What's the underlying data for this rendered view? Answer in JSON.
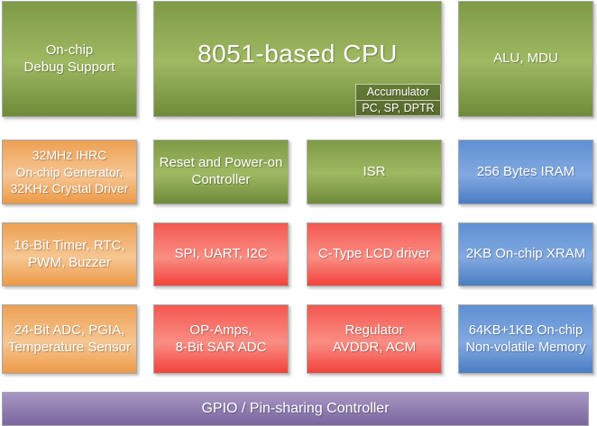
{
  "colors": {
    "green_top": "#7f9a46",
    "green_mid": "#9fb862",
    "green_bottom": "#6f8b39",
    "orange_top": "#eda053",
    "orange_mid": "#f6c693",
    "orange_bottom": "#ec9a46",
    "red_top": "#f45850",
    "red_mid": "#fa8e84",
    "red_bottom": "#f2423b",
    "blue_top": "#5e90d4",
    "blue_mid": "#82a9e0",
    "blue_bottom": "#4a7dc4",
    "purple_top": "#a897c4",
    "purple_bottom": "#7b689e",
    "accumulator_bg": "#5c7030",
    "block_border": "#a6a6a6",
    "accumulator_border": "#c8cdb6",
    "text": "#ffffff",
    "background": "#ffffff"
  },
  "blocks": {
    "debug": {
      "label": "On-chip\nDebug Support"
    },
    "cpu": {
      "label": "8051-based CPU",
      "sub": {
        "line1": "Accumulator",
        "line2": "PC, SP, DPTR"
      }
    },
    "alu": {
      "label": "ALU, MDU"
    },
    "clock": {
      "label": "32MHz IHRC\nOn-chip Generator,\n32KHz Crystal Driver"
    },
    "reset": {
      "label": "Reset and Power-on\nController"
    },
    "isr": {
      "label": "ISR"
    },
    "iram": {
      "label": "256 Bytes IRAM"
    },
    "timer": {
      "label": "16-Bit Timer, RTC,\nPWM, Buzzer"
    },
    "serial": {
      "label": "SPI, UART, I2C"
    },
    "lcd": {
      "label": "C-Type LCD driver"
    },
    "xram": {
      "label": "2KB On-chip XRAM"
    },
    "adc24": {
      "label": "24-Bit ADC, PGIA,\nTemperature Sensor"
    },
    "opamp": {
      "label": "OP-Amps,\n8-Bit SAR ADC"
    },
    "regulator": {
      "label": "Regulator\nAVDDR, ACM"
    },
    "nvm": {
      "label": "64KB+1KB On-chip\nNon-volatile Memory"
    },
    "gpio": {
      "label": "GPIO / Pin-sharing Controller"
    }
  }
}
